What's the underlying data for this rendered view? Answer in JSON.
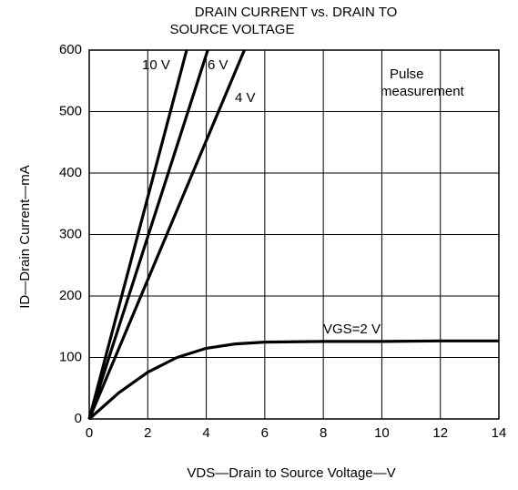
{
  "chart_data": {
    "type": "line",
    "title": [
      "DRAIN CURRENT vs. DRAIN TO",
      "SOURCE VOLTAGE"
    ],
    "x_label": "VDS—Drain to Source Voltage—V",
    "y_label": "ID—Drain Current—mA",
    "annotation": [
      "Pulse",
      "measurement"
    ],
    "xlim": [
      0,
      14
    ],
    "xticks": [
      0,
      2,
      4,
      6,
      8,
      10,
      12,
      14
    ],
    "ylim": [
      0,
      600
    ],
    "yticks": [
      0,
      100,
      200,
      300,
      400,
      500,
      600
    ],
    "grid": true,
    "series": [
      {
        "name": "10 V",
        "color": "#000000",
        "x": [
          0,
          3.33
        ],
        "values": [
          0,
          600
        ]
      },
      {
        "name": "6 V",
        "color": "#000000",
        "x": [
          0,
          4.05
        ],
        "values": [
          0,
          600
        ]
      },
      {
        "name": "4 V",
        "color": "#000000",
        "x": [
          0,
          5.3
        ],
        "values": [
          0,
          600
        ]
      },
      {
        "name": "VGS=2 V",
        "color": "#000000",
        "x": [
          0,
          1,
          2,
          3,
          4,
          5,
          6,
          8,
          10,
          12,
          14
        ],
        "values": [
          0,
          42,
          76,
          100,
          115,
          122,
          125,
          126,
          126,
          127,
          127
        ]
      }
    ]
  }
}
